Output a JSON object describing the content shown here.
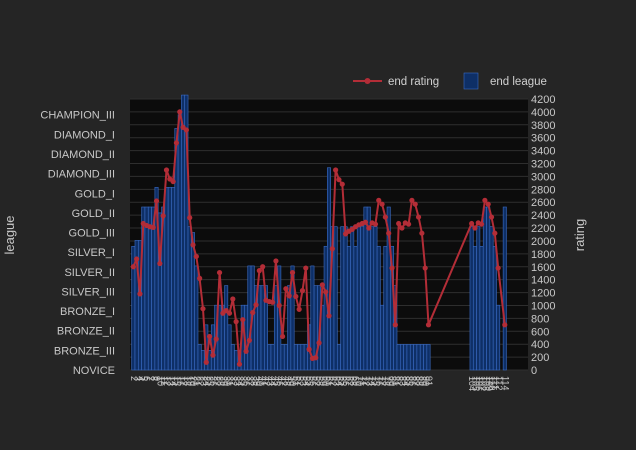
{
  "chart_data": {
    "type": "bar+line",
    "title": "",
    "colors": {
      "background": "#252525",
      "plot_bg": "#0c0c0c",
      "grid": "#2e2e2e",
      "bar": "#0e2f66",
      "bar_edge": "#3a6bc4",
      "line": "#b32d37",
      "text": "#c8c8c8"
    },
    "legend": {
      "placement": "top-right",
      "items": [
        {
          "label": "end rating",
          "kind": "line"
        },
        {
          "label": "end league",
          "kind": "bar"
        }
      ]
    },
    "y_left": {
      "title": "league",
      "categories": [
        "NOVICE",
        "BRONZE_III",
        "BRONZE_II",
        "BRONZE_I",
        "SILVER_III",
        "SILVER_II",
        "SILVER_I",
        "GOLD_III",
        "GOLD_II",
        "GOLD_I",
        "DIAMOND_III",
        "DIAMOND_II",
        "DIAMOND_I",
        "CHAMPION_III"
      ]
    },
    "y_right": {
      "title": "rating",
      "range": [
        0,
        4200
      ],
      "ticks": [
        0,
        200,
        400,
        600,
        800,
        1000,
        1200,
        1400,
        1600,
        1800,
        2000,
        2200,
        2400,
        2600,
        2800,
        3000,
        3200,
        3400,
        3600,
        3800,
        4000,
        4200
      ]
    },
    "x_range": [
      0,
      120
    ],
    "x_tick_labels": [
      {
        "x": 1,
        "text": "2"
      },
      {
        "x": 2,
        "text": "3"
      },
      {
        "x": 3,
        "text": "4"
      },
      {
        "x": 4,
        "text": "5"
      },
      {
        "x": 5,
        "text": "6"
      },
      {
        "x": 6,
        "text": "7"
      },
      {
        "x": 7,
        "text": "8"
      },
      {
        "x": 8,
        "text": "9"
      },
      {
        "x": 9,
        "text": "10"
      },
      {
        "x": 10,
        "text": "11"
      },
      {
        "x": 11,
        "text": "12"
      },
      {
        "x": 12,
        "text": "13"
      },
      {
        "x": 13,
        "text": "14"
      },
      {
        "x": 14,
        "text": "15"
      },
      {
        "x": 15,
        "text": "16"
      },
      {
        "x": 16,
        "text": "17"
      },
      {
        "x": 17,
        "text": "18"
      },
      {
        "x": 18,
        "text": "19"
      },
      {
        "x": 19,
        "text": "20"
      },
      {
        "x": 20,
        "text": "21"
      },
      {
        "x": 21,
        "text": "22"
      },
      {
        "x": 22,
        "text": "23"
      },
      {
        "x": 23,
        "text": "24"
      },
      {
        "x": 24,
        "text": "25"
      },
      {
        "x": 25,
        "text": "26"
      },
      {
        "x": 26,
        "text": "27"
      },
      {
        "x": 27,
        "text": "28"
      },
      {
        "x": 28,
        "text": "29"
      },
      {
        "x": 29,
        "text": "30"
      },
      {
        "x": 30,
        "text": "31"
      },
      {
        "x": 31,
        "text": "32"
      },
      {
        "x": 32,
        "text": "33"
      },
      {
        "x": 33,
        "text": "34"
      },
      {
        "x": 34,
        "text": "35"
      },
      {
        "x": 35,
        "text": "36"
      },
      {
        "x": 36,
        "text": "37"
      },
      {
        "x": 37,
        "text": "38"
      },
      {
        "x": 38,
        "text": "39"
      },
      {
        "x": 39,
        "text": "40"
      },
      {
        "x": 40,
        "text": "41"
      },
      {
        "x": 41,
        "text": "42"
      },
      {
        "x": 42,
        "text": "43"
      },
      {
        "x": 43,
        "text": "44"
      },
      {
        "x": 44,
        "text": "45"
      },
      {
        "x": 45,
        "text": "46"
      },
      {
        "x": 46,
        "text": "47"
      },
      {
        "x": 47,
        "text": "48"
      },
      {
        "x": 48,
        "text": "49"
      },
      {
        "x": 49,
        "text": "50"
      },
      {
        "x": 50,
        "text": "51"
      },
      {
        "x": 51,
        "text": "52"
      },
      {
        "x": 52,
        "text": "53"
      },
      {
        "x": 53,
        "text": "54"
      },
      {
        "x": 54,
        "text": "55"
      },
      {
        "x": 55,
        "text": "56"
      },
      {
        "x": 56,
        "text": "57"
      },
      {
        "x": 57,
        "text": "58"
      },
      {
        "x": 58,
        "text": "59"
      },
      {
        "x": 59,
        "text": "60"
      },
      {
        "x": 60,
        "text": "61"
      },
      {
        "x": 61,
        "text": "62"
      },
      {
        "x": 62,
        "text": "63"
      },
      {
        "x": 63,
        "text": "64"
      },
      {
        "x": 64,
        "text": "65"
      },
      {
        "x": 65,
        "text": "66"
      },
      {
        "x": 66,
        "text": "67"
      },
      {
        "x": 67,
        "text": "68"
      },
      {
        "x": 68,
        "text": "69"
      },
      {
        "x": 69,
        "text": "70"
      },
      {
        "x": 70,
        "text": "71"
      },
      {
        "x": 71,
        "text": "72"
      },
      {
        "x": 72,
        "text": "73"
      },
      {
        "x": 73,
        "text": "74"
      },
      {
        "x": 74,
        "text": "75"
      },
      {
        "x": 75,
        "text": "76"
      },
      {
        "x": 76,
        "text": "77"
      },
      {
        "x": 77,
        "text": "78"
      },
      {
        "x": 78,
        "text": "79"
      },
      {
        "x": 79,
        "text": "80"
      },
      {
        "x": 80,
        "text": "81"
      },
      {
        "x": 81,
        "text": "82"
      },
      {
        "x": 82,
        "text": "83"
      },
      {
        "x": 83,
        "text": "84"
      },
      {
        "x": 84,
        "text": "85"
      },
      {
        "x": 85,
        "text": "86"
      },
      {
        "x": 86,
        "text": "87"
      },
      {
        "x": 87,
        "text": "88"
      },
      {
        "x": 88,
        "text": "89"
      },
      {
        "x": 89,
        "text": "90"
      },
      {
        "x": 90,
        "text": "91"
      },
      {
        "x": 103,
        "text": "104"
      },
      {
        "x": 104,
        "text": "105"
      },
      {
        "x": 105,
        "text": "106"
      },
      {
        "x": 106,
        "text": "107"
      },
      {
        "x": 107,
        "text": "108"
      },
      {
        "x": 108,
        "text": "109"
      },
      {
        "x": 109,
        "text": "110"
      },
      {
        "x": 110,
        "text": "111"
      },
      {
        "x": 111,
        "text": "112"
      },
      {
        "x": 113,
        "text": "114"
      }
    ],
    "series": [
      {
        "name": "end league",
        "type": "bar",
        "axis": "left",
        "x": [
          1,
          2,
          3,
          4,
          5,
          6,
          7,
          8,
          9,
          10,
          11,
          12,
          13,
          14,
          15,
          16,
          17,
          18,
          19,
          20,
          21,
          22,
          23,
          24,
          25,
          26,
          27,
          28,
          29,
          30,
          31,
          32,
          33,
          34,
          35,
          36,
          37,
          38,
          39,
          40,
          41,
          42,
          43,
          44,
          45,
          46,
          47,
          48,
          49,
          50,
          51,
          52,
          53,
          54,
          55,
          56,
          57,
          58,
          59,
          60,
          61,
          62,
          63,
          64,
          65,
          66,
          67,
          68,
          69,
          70,
          71,
          72,
          73,
          74,
          75,
          76,
          77,
          78,
          79,
          80,
          81,
          82,
          83,
          84,
          85,
          86,
          87,
          88,
          89,
          90,
          103,
          104,
          105,
          106,
          107,
          108,
          109,
          110,
          111,
          113
        ],
        "values": [
          6.3,
          6.6,
          6.6,
          8.3,
          8.3,
          8.3,
          8.3,
          9.3,
          8.0,
          8.3,
          9.3,
          9.3,
          9.3,
          12.3,
          13.0,
          14.0,
          14.0,
          7.3,
          7.0,
          5.3,
          1.3,
          1.0,
          2.3,
          1.0,
          2.3,
          3.3,
          3.3,
          3.3,
          4.3,
          2.3,
          1.3,
          1.0,
          1.0,
          3.3,
          3.3,
          5.3,
          5.3,
          4.3,
          4.3,
          4.3,
          4.3,
          1.3,
          1.3,
          4.3,
          5.3,
          1.3,
          1.3,
          4.3,
          5.3,
          1.3,
          1.3,
          1.3,
          1.3,
          2.3,
          5.3,
          4.3,
          4.3,
          3.3,
          6.3,
          10.3,
          7.3,
          7.3,
          1.3,
          7.3,
          7.3,
          6.3,
          7.3,
          6.3,
          7.3,
          7.3,
          8.3,
          8.3,
          7.3,
          7.3,
          6.3,
          3.3,
          6.3,
          8.3,
          6.3,
          4.3,
          1.3,
          1.3,
          1.3,
          1.3,
          1.3,
          1.3,
          1.3,
          1.3,
          1.3,
          1.3,
          7.3,
          6.3,
          7.3,
          6.3,
          8.3,
          8.3,
          7.3,
          6.3,
          3.3,
          8.3
        ]
      },
      {
        "name": "end rating",
        "type": "line",
        "axis": "right",
        "x": [
          1,
          2,
          3,
          4,
          5,
          6,
          7,
          8,
          9,
          10,
          11,
          12,
          13,
          14,
          15,
          16,
          17,
          18,
          19,
          20,
          21,
          22,
          23,
          24,
          25,
          26,
          27,
          28,
          29,
          30,
          31,
          32,
          33,
          34,
          35,
          36,
          37,
          38,
          39,
          40,
          41,
          42,
          43,
          44,
          45,
          46,
          47,
          48,
          49,
          50,
          51,
          52,
          53,
          54,
          55,
          56,
          57,
          58,
          59,
          60,
          61,
          62,
          63,
          64,
          65,
          66,
          67,
          68,
          69,
          70,
          71,
          72,
          73,
          74,
          75,
          76,
          77,
          78,
          79,
          80,
          81,
          82,
          83,
          84,
          85,
          86,
          87,
          88,
          89,
          90,
          103,
          104,
          105,
          106,
          107,
          108,
          109,
          110,
          111,
          113
        ],
        "values": [
          1600,
          1720,
          1180,
          2270,
          2240,
          2220,
          2210,
          2620,
          1650,
          2390,
          3100,
          2960,
          2920,
          3520,
          4000,
          3760,
          3720,
          2360,
          1940,
          1760,
          1420,
          950,
          120,
          520,
          230,
          480,
          1510,
          880,
          920,
          880,
          1100,
          750,
          90,
          780,
          290,
          460,
          890,
          1010,
          1540,
          1600,
          1080,
          1060,
          1050,
          1690,
          1000,
          520,
          1260,
          1150,
          1510,
          1140,
          940,
          1230,
          1580,
          320,
          180,
          190,
          420,
          1320,
          1210,
          840,
          1880,
          3100,
          2950,
          2880,
          2110,
          2150,
          2180,
          2220,
          2250,
          2270,
          2290,
          2200,
          2280,
          2260,
          2630,
          2570,
          2370,
          2120,
          1580,
          700,
          2270,
          2200,
          2280,
          2260,
          2630,
          2570,
          2370,
          2120,
          1580,
          700,
          2270,
          2200,
          2280,
          2260,
          2630,
          2570,
          2370,
          2120,
          1580,
          700
        ],
        "note_values_after_index_89_follow_x": true
      }
    ]
  }
}
